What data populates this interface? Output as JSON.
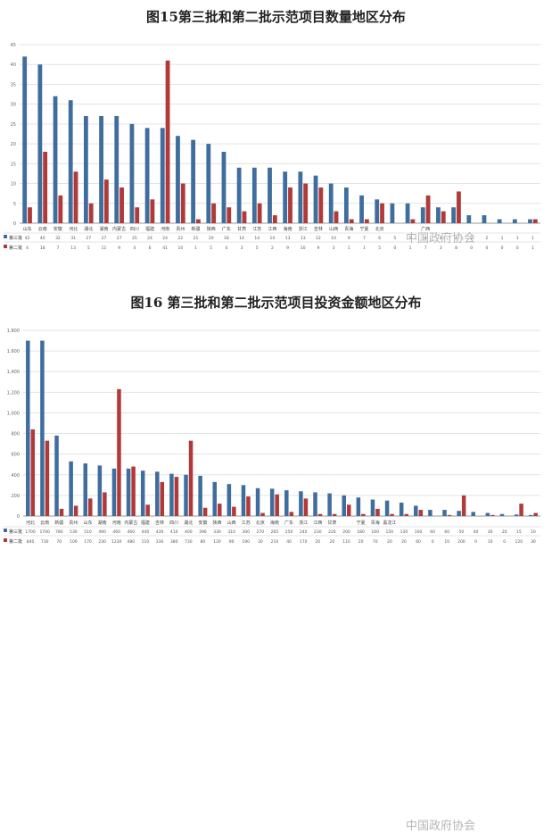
{
  "watermark": "中国政府协会",
  "chart_data": [
    {
      "type": "bar",
      "title": "图15第三批和第二批示范项目数量地区分布",
      "categories": [
        "山东",
        "云南",
        "安徽",
        "河北",
        "湖北",
        "湖南",
        "内蒙古",
        "四川",
        "福建",
        "河南",
        "贵州",
        "新疆",
        "陕西",
        "广东",
        "甘肃",
        "江苏",
        "江西",
        "海南",
        "浙江",
        "吉林",
        "山西",
        "青海",
        "宁夏",
        "北京",
        "",
        "",
        "广西",
        "",
        "",
        "",
        "",
        "",
        "",
        ""
      ],
      "series": [
        {
          "name": "第三批",
          "color": "#3f6e9e",
          "values": [
            42,
            40,
            32,
            31,
            27,
            27,
            27,
            25,
            24,
            24,
            22,
            21,
            20,
            18,
            14,
            14,
            14,
            13,
            13,
            12,
            10,
            9,
            7,
            6,
            5,
            5,
            4,
            4,
            4,
            2,
            2,
            1,
            1,
            1
          ]
        },
        {
          "name": "第二批",
          "color": "#b03a3a",
          "values": [
            4,
            18,
            7,
            13,
            5,
            11,
            9,
            4,
            6,
            41,
            10,
            1,
            5,
            4,
            3,
            5,
            2,
            9,
            10,
            9,
            3,
            1,
            1,
            5,
            0,
            1,
            7,
            3,
            8,
            0,
            0,
            0,
            0,
            1
          ]
        }
      ],
      "ylim": [
        0,
        45
      ],
      "yticks": [
        0,
        5,
        10,
        15,
        20,
        25,
        30,
        35,
        40,
        45
      ],
      "legend": "bottom-left table"
    },
    {
      "type": "bar",
      "title": "图16  第三批和第二批示范项目投资金额地区分布",
      "categories": [
        "河北",
        "云南",
        "新疆",
        "贵州",
        "山东",
        "湖南",
        "河南",
        "内蒙古",
        "福建",
        "吉林",
        "四川",
        "湖北",
        "安徽",
        "陕西",
        "山西",
        "江苏",
        "北京",
        "海南",
        "广东",
        "浙江",
        "江西",
        "甘肃",
        "",
        "宁夏",
        "青海",
        "黑龙江",
        "",
        "",
        "",
        "",
        "",
        "",
        "",
        "",
        "",
        ""
      ],
      "series": [
        {
          "name": "第三批",
          "color": "#3f6e9e",
          "values": [
            1700,
            1700,
            780,
            530,
            510,
            490,
            460,
            460,
            440,
            430,
            410,
            400,
            390,
            330,
            310,
            300,
            270,
            265,
            250,
            240,
            230,
            220,
            200,
            180,
            160,
            150,
            130,
            100,
            60,
            60,
            50,
            40,
            30,
            20,
            15,
            10
          ]
        },
        {
          "name": "第二批",
          "color": "#b03a3a",
          "values": [
            840,
            730,
            70,
            100,
            170,
            230,
            1230,
            480,
            110,
            330,
            380,
            730,
            80,
            120,
            90,
            190,
            30,
            210,
            40,
            170,
            20,
            20,
            110,
            20,
            70,
            20,
            20,
            60,
            0,
            10,
            200,
            0,
            10,
            0,
            120,
            30
          ]
        }
      ],
      "ylim": [
        0,
        1800
      ],
      "yticks": [
        0,
        200,
        400,
        600,
        800,
        1000,
        1200,
        1400,
        1600,
        1800
      ],
      "legend": "bottom-left table"
    }
  ]
}
